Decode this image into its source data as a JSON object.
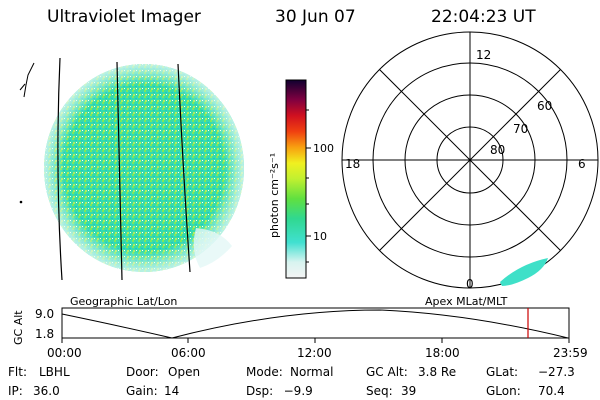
{
  "header": {
    "title": "Ultraviolet Imager",
    "date": "30 Jun 07",
    "time": "22:04:23 UT"
  },
  "colorbar": {
    "unit_label": "photon cm⁻²s⁻¹",
    "ticks": [
      "100",
      "10"
    ]
  },
  "polar_plot": {
    "mlt_labels": {
      "top": "12",
      "right": "6",
      "left": "18",
      "bottom": "0"
    },
    "lat_labels": [
      "60",
      "70",
      "80"
    ]
  },
  "captions": {
    "left": "Geographic Lat/Lon",
    "right": "Apex MLat/MLT"
  },
  "altitude_plot": {
    "axis_label": "GC Alt",
    "y_max": "9.0",
    "y_min": "1.8",
    "time_ticks": [
      "00:00",
      "06:00",
      "12:00",
      "18:00",
      "23:59"
    ]
  },
  "info": {
    "row1": [
      {
        "label": "Flt:",
        "value": "LBHL"
      },
      {
        "label": "Door:",
        "value": "Open"
      },
      {
        "label": "Mode:",
        "value": "Normal"
      },
      {
        "label": "GC Alt:",
        "value": "3.8 Re"
      },
      {
        "label": "GLat:",
        "value": "−27.3"
      }
    ],
    "row2": [
      {
        "label": "IP:",
        "value": "36.0"
      },
      {
        "label": "Gain:",
        "value": "14"
      },
      {
        "label": "Dsp:",
        "value": "  −9.9"
      },
      {
        "label": "Seq:",
        "value": "39"
      },
      {
        "label": "GLon:",
        "value": "70.4"
      }
    ]
  },
  "colors": {
    "aurora_fill": "#33e0b0",
    "polar_patch": "#3fe0c8",
    "current_time_marker": "#cc0000"
  }
}
